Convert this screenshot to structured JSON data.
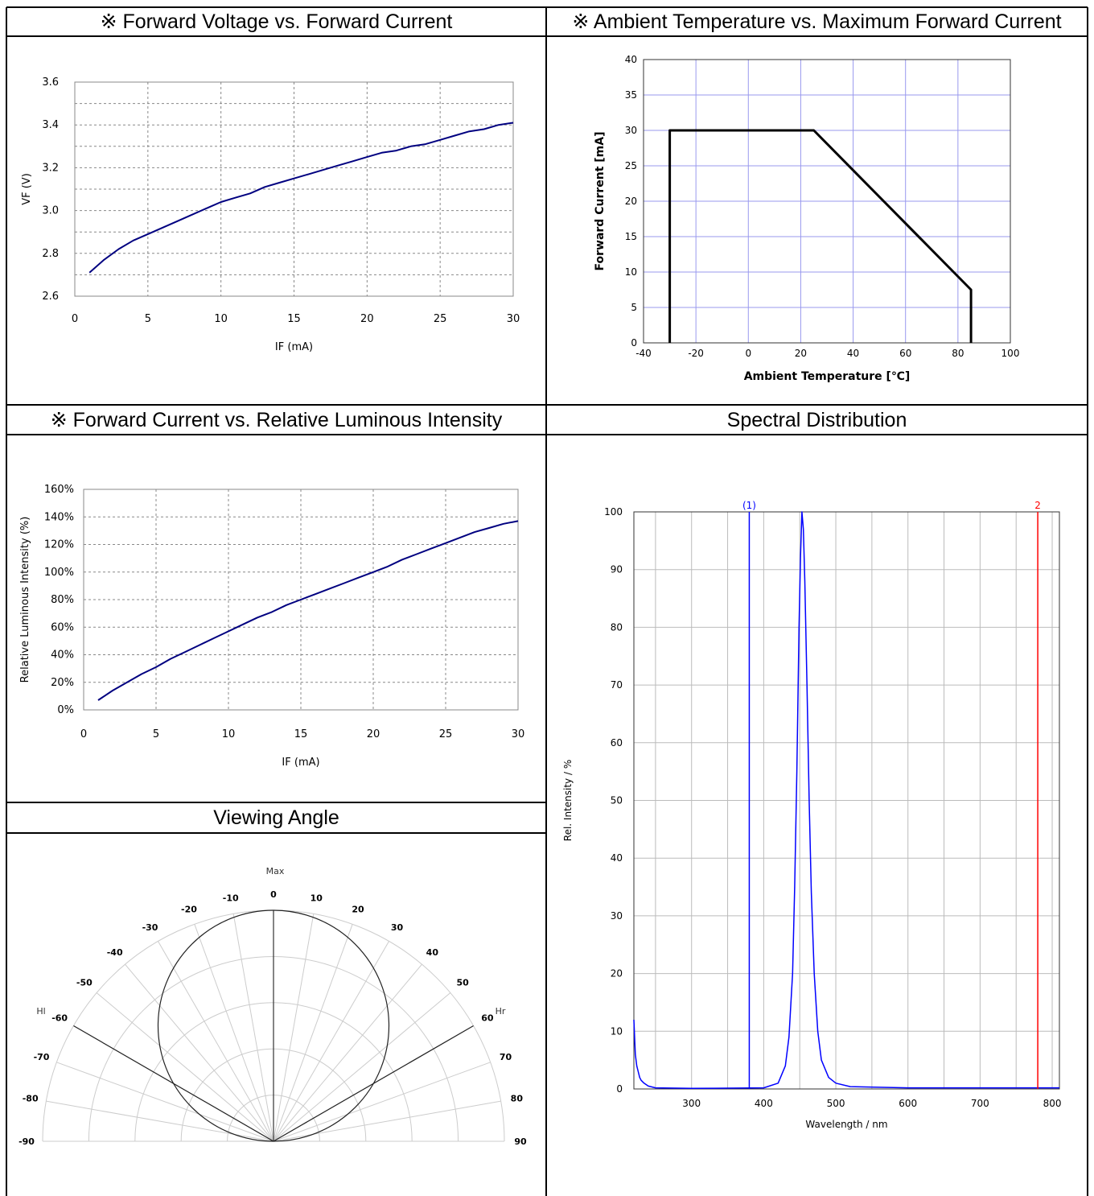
{
  "headers": {
    "fv": "※ Forward Voltage vs. Forward Current",
    "at": "※ Ambient Temperature vs. Maximum Forward Current",
    "fl": "※ Forward Current vs. Relative Luminous Intensity",
    "sd": "Spectral Distribution",
    "va": "Viewing Angle"
  },
  "chart_data": [
    {
      "id": "fv",
      "type": "line",
      "title": "※ Forward Voltage vs. Forward Current",
      "xlabel": "IF (mA)",
      "ylabel": "VF (V)",
      "xlim": [
        0,
        30
      ],
      "ylim": [
        2.6,
        3.6
      ],
      "xticks": [
        "0",
        "5",
        "10",
        "15",
        "20",
        "25",
        "30"
      ],
      "yticks": [
        "2.6",
        "2.8",
        "3.0",
        "3.2",
        "3.4",
        "3.6"
      ],
      "grid": true,
      "line_color": "#000080",
      "x": [
        1,
        2,
        3,
        4,
        5,
        6,
        7,
        8,
        9,
        10,
        11,
        12,
        13,
        14,
        15,
        16,
        17,
        18,
        19,
        20,
        21,
        22,
        23,
        24,
        25,
        26,
        27,
        28,
        29,
        30
      ],
      "y": [
        2.71,
        2.77,
        2.82,
        2.86,
        2.89,
        2.92,
        2.95,
        2.98,
        3.01,
        3.04,
        3.06,
        3.08,
        3.11,
        3.13,
        3.15,
        3.17,
        3.19,
        3.21,
        3.23,
        3.25,
        3.27,
        3.28,
        3.3,
        3.31,
        3.33,
        3.35,
        3.37,
        3.38,
        3.4,
        3.41
      ]
    },
    {
      "id": "at",
      "type": "line",
      "title": "※ Ambient Temperature vs. Maximum Forward Current",
      "xlabel": "Ambient Temperature [℃]",
      "ylabel": "Forward Current [mA]",
      "xlim": [
        -40,
        100
      ],
      "ylim": [
        0,
        40
      ],
      "xticks": [
        "-40",
        "-20",
        "0",
        "20",
        "40",
        "60",
        "80",
        "100"
      ],
      "yticks": [
        "0",
        "5",
        "10",
        "15",
        "20",
        "25",
        "30",
        "35",
        "40"
      ],
      "grid": true,
      "line_color": "#000000",
      "x": [
        -30,
        -30,
        25,
        85,
        85
      ],
      "y": [
        0,
        30,
        30,
        7.5,
        0
      ]
    },
    {
      "id": "fl",
      "type": "line",
      "title": "※ Forward Current vs. Relative Luminous Intensity",
      "xlabel": "IF (mA)",
      "ylabel": "Relative Luminous Intensity (%)",
      "xlim": [
        0,
        30
      ],
      "ylim": [
        0,
        160
      ],
      "xticks": [
        "0",
        "5",
        "10",
        "15",
        "20",
        "25",
        "30"
      ],
      "yticks": [
        "0%",
        "20%",
        "40%",
        "60%",
        "80%",
        "100%",
        "120%",
        "140%",
        "160%"
      ],
      "grid": true,
      "line_color": "#000080",
      "x": [
        1,
        2,
        3,
        4,
        5,
        6,
        7,
        8,
        9,
        10,
        11,
        12,
        13,
        14,
        15,
        16,
        17,
        18,
        19,
        20,
        21,
        22,
        23,
        24,
        25,
        26,
        27,
        28,
        29,
        30
      ],
      "y": [
        7,
        14,
        20,
        26,
        31,
        37,
        42,
        47,
        52,
        57,
        62,
        67,
        71,
        76,
        80,
        84,
        88,
        92,
        96,
        100,
        104,
        109,
        113,
        117,
        121,
        125,
        129,
        132,
        135,
        137
      ]
    },
    {
      "id": "sd",
      "type": "line",
      "title": "Spectral Distribution",
      "xlabel": "Wavelength / nm",
      "ylabel": "Rel. Intensity / %",
      "xlim": [
        220,
        810
      ],
      "ylim": [
        0,
        100
      ],
      "xticks": [
        "300",
        "400",
        "500",
        "600",
        "700",
        "800"
      ],
      "yticks": [
        "0",
        "10",
        "20",
        "30",
        "40",
        "50",
        "60",
        "70",
        "80",
        "90",
        "100"
      ],
      "grid": true,
      "line_color": "#0000ff",
      "markers": [
        {
          "label": "(1)",
          "x": 380,
          "color": "#0000ff"
        },
        {
          "label": "2",
          "x": 780,
          "color": "#ff0000"
        }
      ],
      "x": [
        220,
        222,
        224,
        226,
        228,
        230,
        234,
        240,
        250,
        300,
        400,
        420,
        430,
        435,
        440,
        443,
        446,
        449,
        451,
        453,
        455,
        457,
        460,
        463,
        466,
        470,
        475,
        480,
        490,
        500,
        520,
        600,
        700,
        810
      ],
      "y": [
        12,
        6,
        4,
        3,
        2,
        1.5,
        1,
        0.5,
        0.2,
        0.1,
        0.2,
        1,
        4,
        9,
        20,
        35,
        55,
        80,
        92,
        100,
        97,
        88,
        70,
        50,
        34,
        20,
        10,
        5,
        2,
        1,
        0.4,
        0.2,
        0.2,
        0.2
      ]
    },
    {
      "id": "va",
      "type": "polar",
      "title": "Viewing Angle",
      "top_label": "Max",
      "left_label": "Hl",
      "right_label": "Hr",
      "angle_labels_left": [
        "-10",
        "-20",
        "-30",
        "-40",
        "-50",
        "-60",
        "-70",
        "-80",
        "-90"
      ],
      "angle_labels_right": [
        "0",
        "10",
        "20",
        "30",
        "40",
        "50",
        "60",
        "70",
        "80",
        "90"
      ],
      "half_angle_lines_deg": [
        -60,
        60
      ],
      "pattern": "circle",
      "rings": 5
    }
  ]
}
